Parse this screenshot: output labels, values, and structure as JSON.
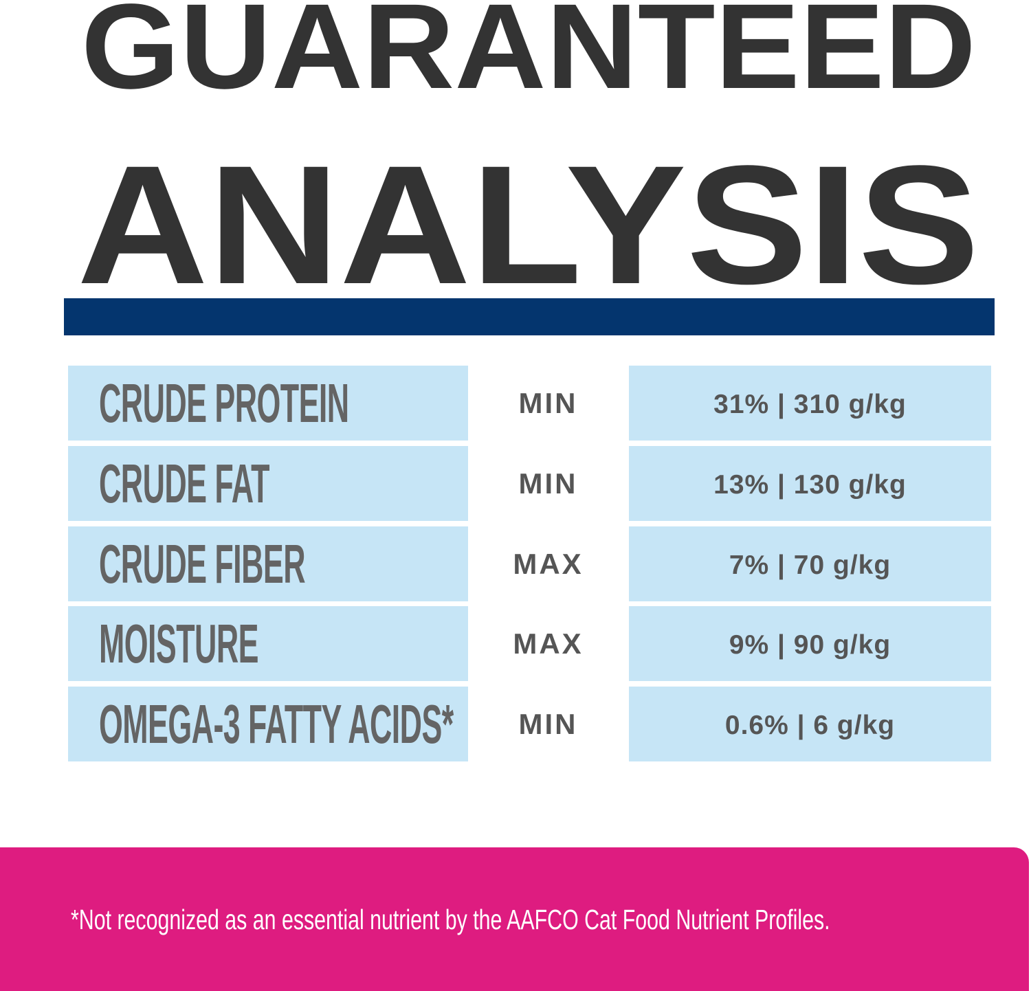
{
  "title": {
    "line1": "GUARANTEED",
    "line2": "ANALYSIS"
  },
  "colors": {
    "title": "#333333",
    "bar": "#04356E",
    "cell": "#C6E5F6",
    "footer": "#DE1C80",
    "text": "#646464"
  },
  "rows": [
    {
      "nutrient": "CRUDE PROTEIN",
      "qualifier": "MIN",
      "value": "31% | 310 g/kg"
    },
    {
      "nutrient": "CRUDE FAT",
      "qualifier": "MIN",
      "value": "13% | 130 g/kg"
    },
    {
      "nutrient": "CRUDE FIBER",
      "qualifier": "MAX",
      "value": "7% | 70 g/kg"
    },
    {
      "nutrient": "MOISTURE",
      "qualifier": "MAX",
      "value": "9% | 90 g/kg"
    },
    {
      "nutrient": "OMEGA-3 FATTY ACIDS*",
      "qualifier": "MIN",
      "value": "0.6% | 6 g/kg"
    }
  ],
  "footnote": "*Not recognized as an essential nutrient by the AAFCO Cat Food Nutrient Profiles."
}
